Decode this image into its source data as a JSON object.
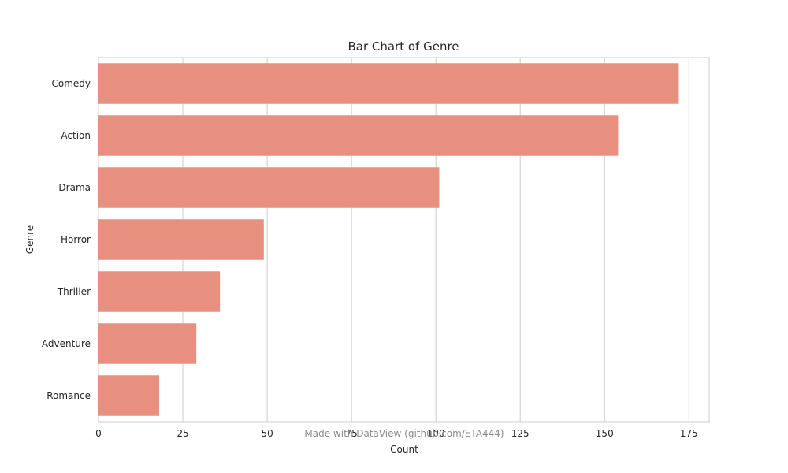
{
  "chart_data": {
    "type": "bar",
    "orientation": "horizontal",
    "title": "Bar Chart of Genre",
    "xlabel": "Count",
    "ylabel": "Genre",
    "categories": [
      "Comedy",
      "Action",
      "Drama",
      "Horror",
      "Thriller",
      "Adventure",
      "Romance"
    ],
    "values": [
      172,
      154,
      101,
      49,
      36,
      29,
      18
    ],
    "xlim": [
      0,
      181
    ],
    "xticks": [
      0,
      25,
      50,
      75,
      100,
      125,
      150,
      175
    ],
    "grid": true,
    "bar_color": "#e8907f"
  },
  "watermark": "Made with DataView (github.com/ETA444)"
}
